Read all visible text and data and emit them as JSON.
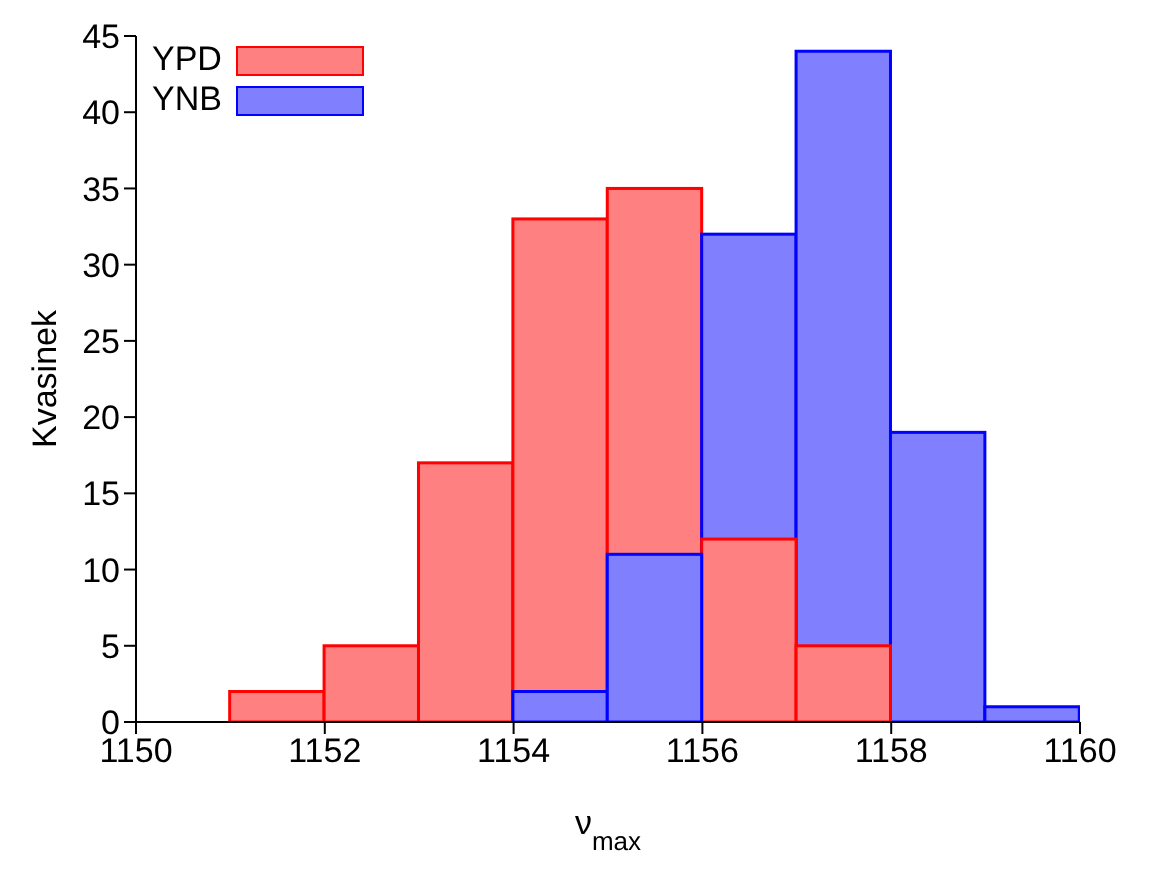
{
  "chart_data": {
    "type": "histogram",
    "xlabel": "ν$_{max}$",
    "ylabel": "Kvasinek",
    "bins": [
      1151,
      1152,
      1153,
      1154,
      1155,
      1156,
      1157,
      1158,
      1159,
      1160
    ],
    "series": [
      {
        "name": "YPD",
        "color": "#ff8080",
        "values": [
          2,
          5,
          17,
          33,
          35,
          12,
          5,
          null,
          null
        ]
      },
      {
        "name": "YNB",
        "color": "#8080ff",
        "values": [
          null,
          null,
          null,
          2,
          11,
          32,
          44,
          19,
          1
        ]
      }
    ],
    "xlim": [
      1150,
      1160
    ],
    "xticks": [
      1150,
      1152,
      1154,
      1156,
      1158,
      1160
    ],
    "ylim": [
      0,
      45
    ],
    "yticks": [
      0,
      5,
      10,
      15,
      20,
      25,
      30,
      35,
      40,
      45
    ],
    "grid": false,
    "legend": "top left"
  }
}
